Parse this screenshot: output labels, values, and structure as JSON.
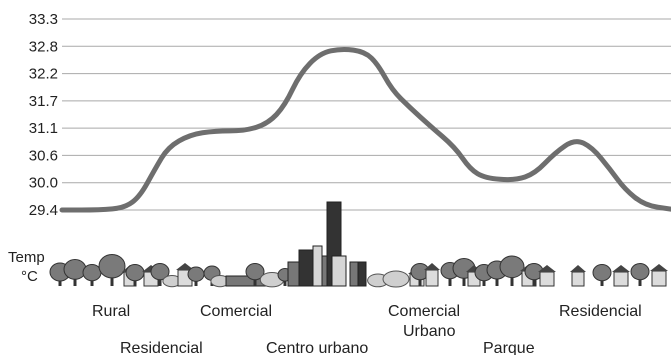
{
  "chart_data": {
    "type": "line",
    "yaxis_title_line1": "Temp",
    "yaxis_title_line2": "°C",
    "yticks": [
      "33.3",
      "32.8",
      "32.2",
      "31.7",
      "31.1",
      "30.6",
      "30.0",
      "29.4"
    ],
    "ylim": [
      29.4,
      33.3
    ],
    "grid": true,
    "x_categories": [
      "Rural",
      "Residencial",
      "Comercial",
      "Centro urbano",
      "Comercial Urbano",
      "Parque",
      "Residencial"
    ],
    "series": [
      {
        "color": "#6e6e6e",
        "points": [
          {
            "x": "Rural",
            "y": 29.4
          },
          {
            "x": "Residencial",
            "y": 30.6
          },
          {
            "x": "Comercial",
            "y": 31.0
          },
          {
            "x": "Centro urbano",
            "y": 32.8
          },
          {
            "x": "Comercial Urbano",
            "y": 31.4
          },
          {
            "x": "Parque",
            "y": 30.05
          },
          {
            "x": "Residencial",
            "y": 30.9
          }
        ]
      }
    ]
  },
  "zone_labels": {
    "rural": "Rural",
    "comercial": "Comercial",
    "comercial_urbano_1": "Comercial",
    "comercial_urbano_2": "Urbano",
    "residencial_right": "Residencial",
    "residencial_left": "Residencial",
    "centro_urbano": "Centro urbano",
    "parque": "Parque"
  },
  "colors": {
    "line": "#6e6e6e",
    "grid": "#a9a9a9",
    "building_dark": "#333333",
    "building_mid": "#777777",
    "building_light": "#d6d6d6",
    "tree": "#7a7a7a"
  }
}
